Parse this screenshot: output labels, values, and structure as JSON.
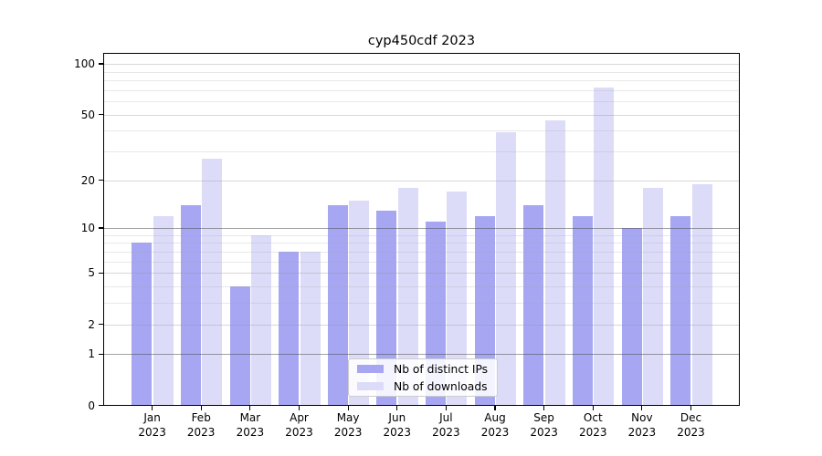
{
  "title": "cyp450cdf 2023",
  "colors": {
    "distinct_ips_bar": "#a6a6f3",
    "downloads_bar": "#dcdcf9",
    "grid_major": "rgba(70,70,70,0.5)",
    "grid_labeled": "rgba(150,150,155,0.38)",
    "grid_minor": "rgba(165,165,170,0.26)",
    "axis": "#000000"
  },
  "legend": {
    "items": [
      {
        "label": "Nb of distinct IPs",
        "color": "#a6a6f3"
      },
      {
        "label": "Nb of downloads",
        "color": "#dcdcf9"
      }
    ]
  },
  "y_axis": {
    "tick_labels": [
      "100",
      "50",
      "20",
      "10",
      "5",
      "2",
      "1",
      "0"
    ]
  },
  "chart_data": {
    "type": "bar",
    "title": "cyp450cdf 2023",
    "categories": [
      "Jan 2023",
      "Feb 2023",
      "Mar 2023",
      "Apr 2023",
      "May 2023",
      "Jun 2023",
      "Jul 2023",
      "Aug 2023",
      "Sep 2023",
      "Oct 2023",
      "Nov 2023",
      "Dec 2023"
    ],
    "series": [
      {
        "name": "Nb of distinct IPs",
        "color": "#a6a6f3",
        "values": [
          8,
          14,
          4,
          7,
          14,
          13,
          11,
          12,
          14,
          12,
          10,
          12
        ]
      },
      {
        "name": "Nb of downloads",
        "color": "#dcdcf9",
        "values": [
          12,
          27,
          9,
          7,
          15,
          18,
          17,
          39,
          46,
          72,
          18,
          19
        ]
      }
    ],
    "xlabel": "",
    "ylabel": "",
    "yscale": "log1p",
    "ylim": [
      0,
      116
    ],
    "yticks": [
      0,
      1,
      2,
      5,
      10,
      20,
      50,
      100
    ],
    "major_gridlines": [
      1,
      10
    ],
    "labeled_gridlines": [
      2,
      5,
      20,
      50,
      100
    ],
    "minor_gridlines": [
      3,
      4,
      6,
      7,
      8,
      9,
      30,
      40,
      60,
      70,
      80,
      90
    ],
    "grid": true,
    "legend_position": "lower center"
  }
}
